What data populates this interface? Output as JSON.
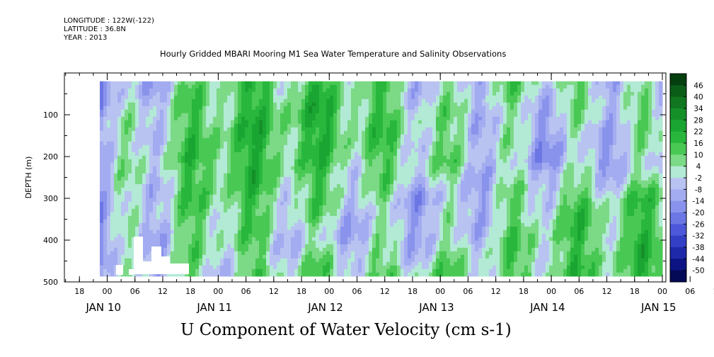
{
  "header": {
    "longitude": "LONGITUDE : 122W(-122)",
    "latitude": "LATITUDE : 36.8N",
    "year": "YEAR : 2013"
  },
  "chart_data": {
    "type": "heatmap",
    "title": "Hourly Gridded MBARI Mooring M1 Sea Water Temperature and Salinity Observations",
    "xlabel": "U Component of Water Velocity (cm s-1)",
    "ylabel": "DEPTH (m)",
    "x_axis": {
      "hour_ticks": [
        "18",
        "00",
        "06",
        "12",
        "18",
        "00",
        "06",
        "12",
        "18",
        "00",
        "06",
        "12",
        "18",
        "00",
        "06",
        "12",
        "18",
        "00",
        "06",
        "12",
        "18",
        "00",
        "06",
        "12",
        "18"
      ],
      "day_labels": [
        "JAN 10",
        "JAN 11",
        "JAN 12",
        "JAN 13",
        "JAN 14",
        "JAN 15"
      ]
    },
    "y_axis": {
      "ticks": [
        100,
        200,
        300,
        400,
        500
      ],
      "range": [
        0,
        500
      ]
    },
    "colorbar": {
      "labels": [
        46,
        40,
        34,
        28,
        22,
        16,
        10,
        4,
        -2,
        -8,
        -14,
        -20,
        -26,
        -32,
        -38,
        -44,
        -50
      ],
      "colors": [
        "#063f0f",
        "#0a5d17",
        "#10761f",
        "#159029",
        "#1aa532",
        "#28b73c",
        "#49c954",
        "#7cd986",
        "#b2ead5",
        "#b9c3f1",
        "#a3acf0",
        "#8993ec",
        "#6c77e4",
        "#4d58da",
        "#3340c6",
        "#1d29a8",
        "#0b1482",
        "#040a56"
      ]
    },
    "field": {
      "times_hours_from_jan10_00": [
        0,
        24,
        48,
        72,
        96,
        120,
        144
      ],
      "depth_range_m": [
        20,
        485
      ],
      "u_cm_s_representative": [
        [
          -14,
          10,
          12,
          -4,
          6,
          -8,
          12
        ],
        [
          -8,
          14,
          16,
          2,
          -6,
          4,
          -2
        ],
        [
          -6,
          16,
          10,
          4,
          -10,
          -6,
          -6
        ],
        [
          -8,
          12,
          4,
          -10,
          6,
          10,
          8
        ],
        [
          -10,
          8,
          -6,
          -4,
          10,
          12,
          -6
        ],
        [
          -8,
          2,
          8,
          6,
          8,
          14,
          4
        ]
      ]
    }
  }
}
